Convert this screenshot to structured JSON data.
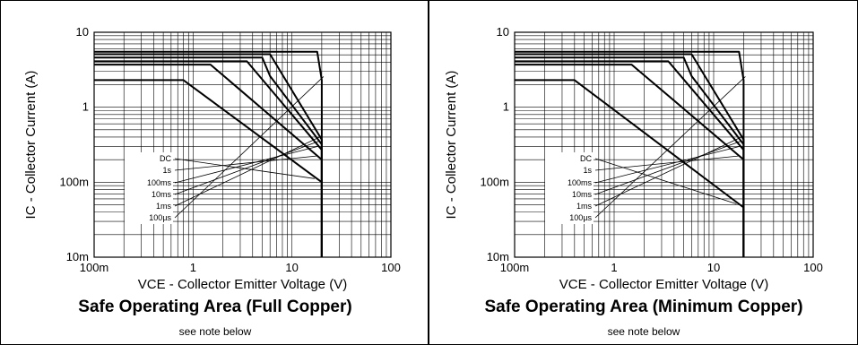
{
  "chart_data": [
    {
      "type": "line",
      "title": "Safe Operating Area (Full Copper)",
      "note": "see note below",
      "xlabel": "VCE - Collector Emitter Voltage (V)",
      "ylabel": "IC - Collector Current (A)",
      "xscale": "log",
      "yscale": "log",
      "xlim": [
        0.1,
        100
      ],
      "ylim": [
        0.01,
        10
      ],
      "grid": true,
      "xtick_labels": [
        "100m",
        "1",
        "10",
        "100"
      ],
      "ytick_labels": [
        "10m",
        "100m",
        "1",
        "10"
      ],
      "series": [
        {
          "name": "DC",
          "points": [
            [
              0.1,
              2.3
            ],
            [
              0.8,
              2.3
            ],
            [
              20,
              0.1
            ],
            [
              20,
              0.01
            ]
          ]
        },
        {
          "name": "1s",
          "points": [
            [
              0.1,
              3.7
            ],
            [
              1.5,
              3.7
            ],
            [
              20,
              0.2
            ],
            [
              20,
              0.01
            ]
          ]
        },
        {
          "name": "100ms",
          "points": [
            [
              0.1,
              4.1
            ],
            [
              3.5,
              4.1
            ],
            [
              20,
              0.27
            ],
            [
              20,
              0.01
            ]
          ]
        },
        {
          "name": "10ms",
          "points": [
            [
              0.1,
              4.6
            ],
            [
              5,
              4.6
            ],
            [
              6,
              2.6
            ],
            [
              20,
              0.32
            ],
            [
              20,
              0.01
            ]
          ]
        },
        {
          "name": "1ms",
          "points": [
            [
              0.1,
              5.1
            ],
            [
              6,
              5.1
            ],
            [
              20,
              0.37
            ],
            [
              20,
              0.01
            ]
          ]
        },
        {
          "name": "100µs",
          "points": [
            [
              0.1,
              5.5
            ],
            [
              18,
              5.5
            ],
            [
              20,
              2.3
            ],
            [
              20,
              0.01
            ]
          ]
        }
      ]
    },
    {
      "type": "line",
      "title": "Safe Operating Area (Minimum Copper)",
      "note": "see note below",
      "xlabel": "VCE - Collector Emitter Voltage (V)",
      "ylabel": "IC - Collector Current (A)",
      "xscale": "log",
      "yscale": "log",
      "xlim": [
        0.1,
        100
      ],
      "ylim": [
        0.01,
        10
      ],
      "grid": true,
      "xtick_labels": [
        "100m",
        "1",
        "10",
        "100"
      ],
      "ytick_labels": [
        "10m",
        "100m",
        "1",
        "10"
      ],
      "series": [
        {
          "name": "DC",
          "points": [
            [
              0.1,
              2.3
            ],
            [
              0.4,
              2.3
            ],
            [
              20,
              0.046
            ],
            [
              20,
              0.01
            ]
          ]
        },
        {
          "name": "1s",
          "points": [
            [
              0.1,
              3.7
            ],
            [
              1.5,
              3.7
            ],
            [
              20,
              0.2
            ],
            [
              20,
              0.01
            ]
          ]
        },
        {
          "name": "100ms",
          "points": [
            [
              0.1,
              4.1
            ],
            [
              3.5,
              4.1
            ],
            [
              20,
              0.27
            ],
            [
              20,
              0.01
            ]
          ]
        },
        {
          "name": "10ms",
          "points": [
            [
              0.1,
              4.6
            ],
            [
              5,
              4.6
            ],
            [
              6,
              2.6
            ],
            [
              20,
              0.32
            ],
            [
              20,
              0.01
            ]
          ]
        },
        {
          "name": "1ms",
          "points": [
            [
              0.1,
              5.1
            ],
            [
              6,
              5.1
            ],
            [
              20,
              0.37
            ],
            [
              20,
              0.01
            ]
          ]
        },
        {
          "name": "100µs",
          "points": [
            [
              0.1,
              5.5
            ],
            [
              18,
              5.5
            ],
            [
              20,
              2.3
            ],
            [
              20,
              0.01
            ]
          ]
        }
      ]
    }
  ]
}
